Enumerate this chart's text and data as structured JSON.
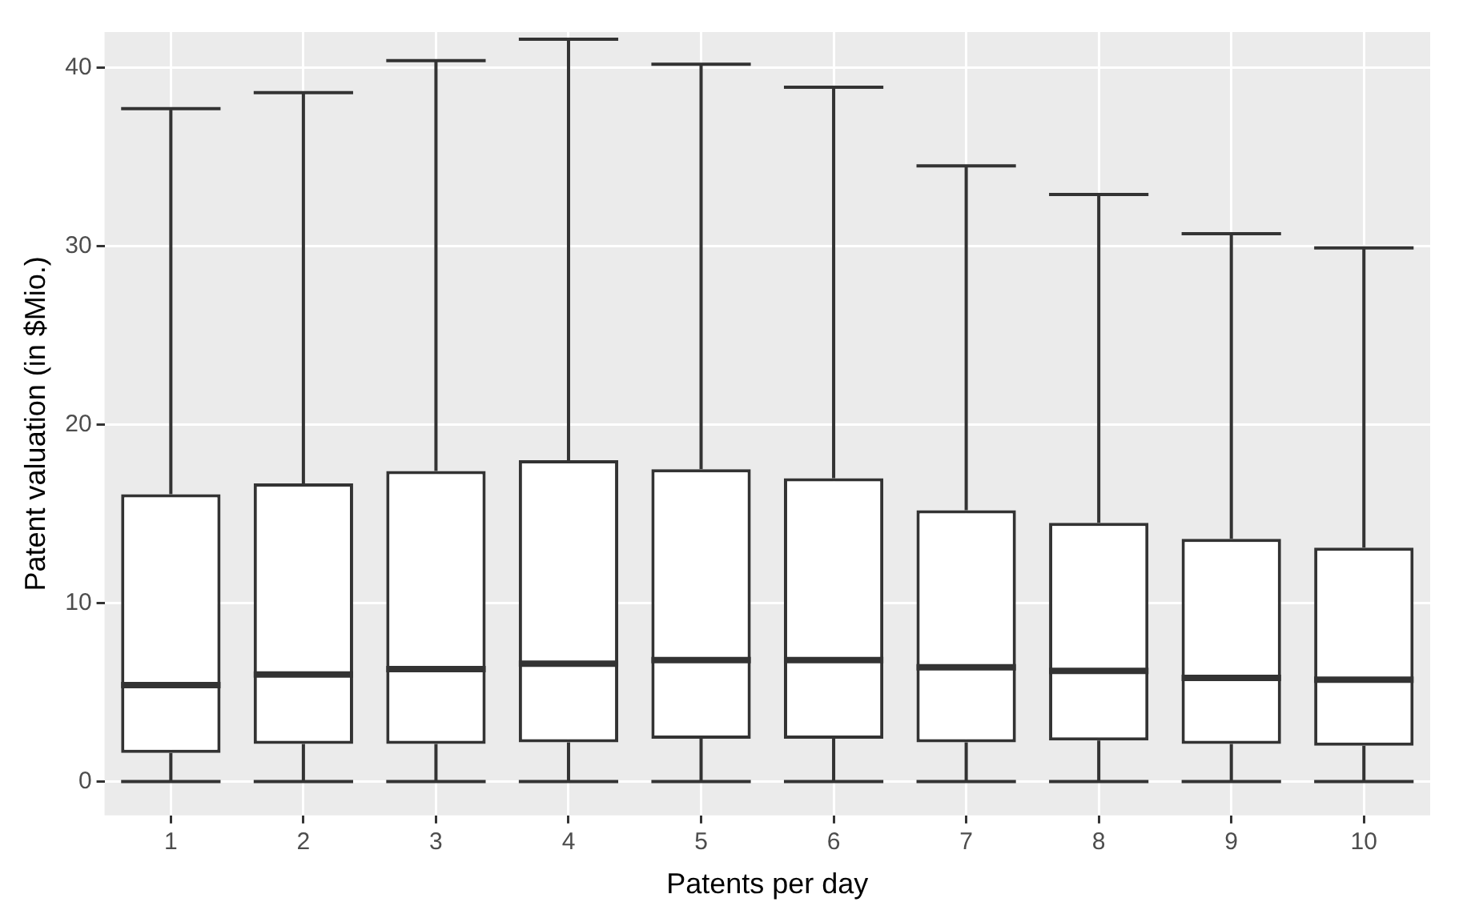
{
  "chart_data": {
    "type": "box",
    "xlabel": "Patents per day",
    "ylabel": "Patent valuation (in $Mio.)",
    "categories": [
      "1",
      "2",
      "3",
      "4",
      "5",
      "6",
      "7",
      "8",
      "9",
      "10"
    ],
    "boxes": [
      {
        "low": 0,
        "q1": 1.6,
        "median": 5.4,
        "q3": 16.1,
        "high": 37.7
      },
      {
        "low": 0,
        "q1": 2.1,
        "median": 6.0,
        "q3": 16.7,
        "high": 38.6
      },
      {
        "low": 0,
        "q1": 2.1,
        "median": 6.3,
        "q3": 17.4,
        "high": 40.4
      },
      {
        "low": 0,
        "q1": 2.2,
        "median": 6.6,
        "q3": 18.0,
        "high": 41.6
      },
      {
        "low": 0,
        "q1": 2.4,
        "median": 6.8,
        "q3": 17.5,
        "high": 40.2
      },
      {
        "low": 0,
        "q1": 2.4,
        "median": 6.8,
        "q3": 17.0,
        "high": 38.9
      },
      {
        "low": 0,
        "q1": 2.2,
        "median": 6.4,
        "q3": 15.2,
        "high": 34.5
      },
      {
        "low": 0,
        "q1": 2.3,
        "median": 6.2,
        "q3": 14.5,
        "high": 32.9
      },
      {
        "low": 0,
        "q1": 2.1,
        "median": 5.8,
        "q3": 13.6,
        "high": 30.7
      },
      {
        "low": 0,
        "q1": 2.0,
        "median": 5.7,
        "q3": 13.1,
        "high": 29.9
      }
    ],
    "color": "#333333",
    "ylim": [
      -1.9,
      42
    ],
    "yticks": [
      0,
      10,
      20,
      30,
      40
    ],
    "grid": true,
    "legend": false
  }
}
